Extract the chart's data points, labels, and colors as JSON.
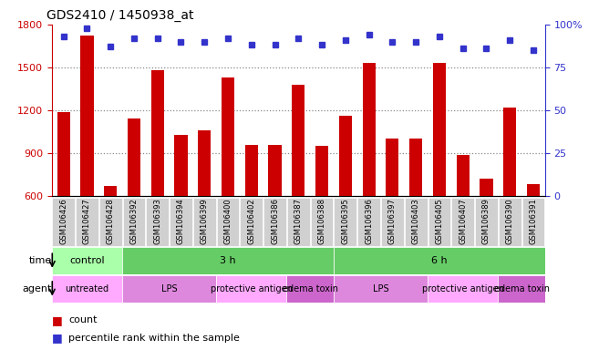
{
  "title": "GDS2410 / 1450938_at",
  "samples": [
    "GSM106426",
    "GSM106427",
    "GSM106428",
    "GSM106392",
    "GSM106393",
    "GSM106394",
    "GSM106399",
    "GSM106400",
    "GSM106402",
    "GSM106386",
    "GSM106387",
    "GSM106388",
    "GSM106395",
    "GSM106396",
    "GSM106397",
    "GSM106403",
    "GSM106405",
    "GSM106407",
    "GSM106389",
    "GSM106390",
    "GSM106391"
  ],
  "counts": [
    1185,
    1720,
    670,
    1140,
    1480,
    1030,
    1060,
    1430,
    960,
    960,
    1380,
    950,
    1160,
    1530,
    1000,
    1000,
    1530,
    890,
    720,
    1220,
    680
  ],
  "percentiles": [
    93,
    98,
    87,
    92,
    92,
    90,
    90,
    92,
    88,
    88,
    92,
    88,
    91,
    94,
    90,
    90,
    93,
    86,
    86,
    91,
    85
  ],
  "ylim_left": [
    600,
    1800
  ],
  "ylim_right": [
    0,
    100
  ],
  "yticks_left": [
    600,
    900,
    1200,
    1500,
    1800
  ],
  "yticks_right": [
    0,
    25,
    50,
    75,
    100
  ],
  "ytick_right_labels": [
    "0",
    "25",
    "50",
    "75",
    "100%"
  ],
  "bar_color": "#cc0000",
  "dot_color": "#3333cc",
  "bar_width": 0.55,
  "dotted_ticks": [
    900,
    1200,
    1500
  ],
  "time_groups": [
    {
      "label": "control",
      "start": 0,
      "end": 3
    },
    {
      "label": "3 h",
      "start": 3,
      "end": 12
    },
    {
      "label": "6 h",
      "start": 12,
      "end": 21
    }
  ],
  "time_colors": [
    "#aaffaa",
    "#66cc66",
    "#66cc66"
  ],
  "agent_groups": [
    {
      "label": "untreated",
      "start": 0,
      "end": 3
    },
    {
      "label": "LPS",
      "start": 3,
      "end": 7
    },
    {
      "label": "protective antigen",
      "start": 7,
      "end": 10
    },
    {
      "label": "edema toxin",
      "start": 10,
      "end": 12
    },
    {
      "label": "LPS",
      "start": 12,
      "end": 16
    },
    {
      "label": "protective antigen",
      "start": 16,
      "end": 19
    },
    {
      "label": "edema toxin",
      "start": 19,
      "end": 21
    }
  ],
  "agent_colors": [
    "#ffaaff",
    "#dd88dd",
    "#ffaaff",
    "#cc66cc",
    "#dd88dd",
    "#ffaaff",
    "#cc66cc"
  ],
  "legend_count_label": "count",
  "legend_pct_label": "percentile rank within the sample",
  "xlabel_time": "time",
  "xlabel_agent": "agent",
  "tick_bg_color": "#d0d0d0",
  "plot_bg": "#ffffff",
  "dotted_color": "#888888",
  "spine_color": "#000000"
}
